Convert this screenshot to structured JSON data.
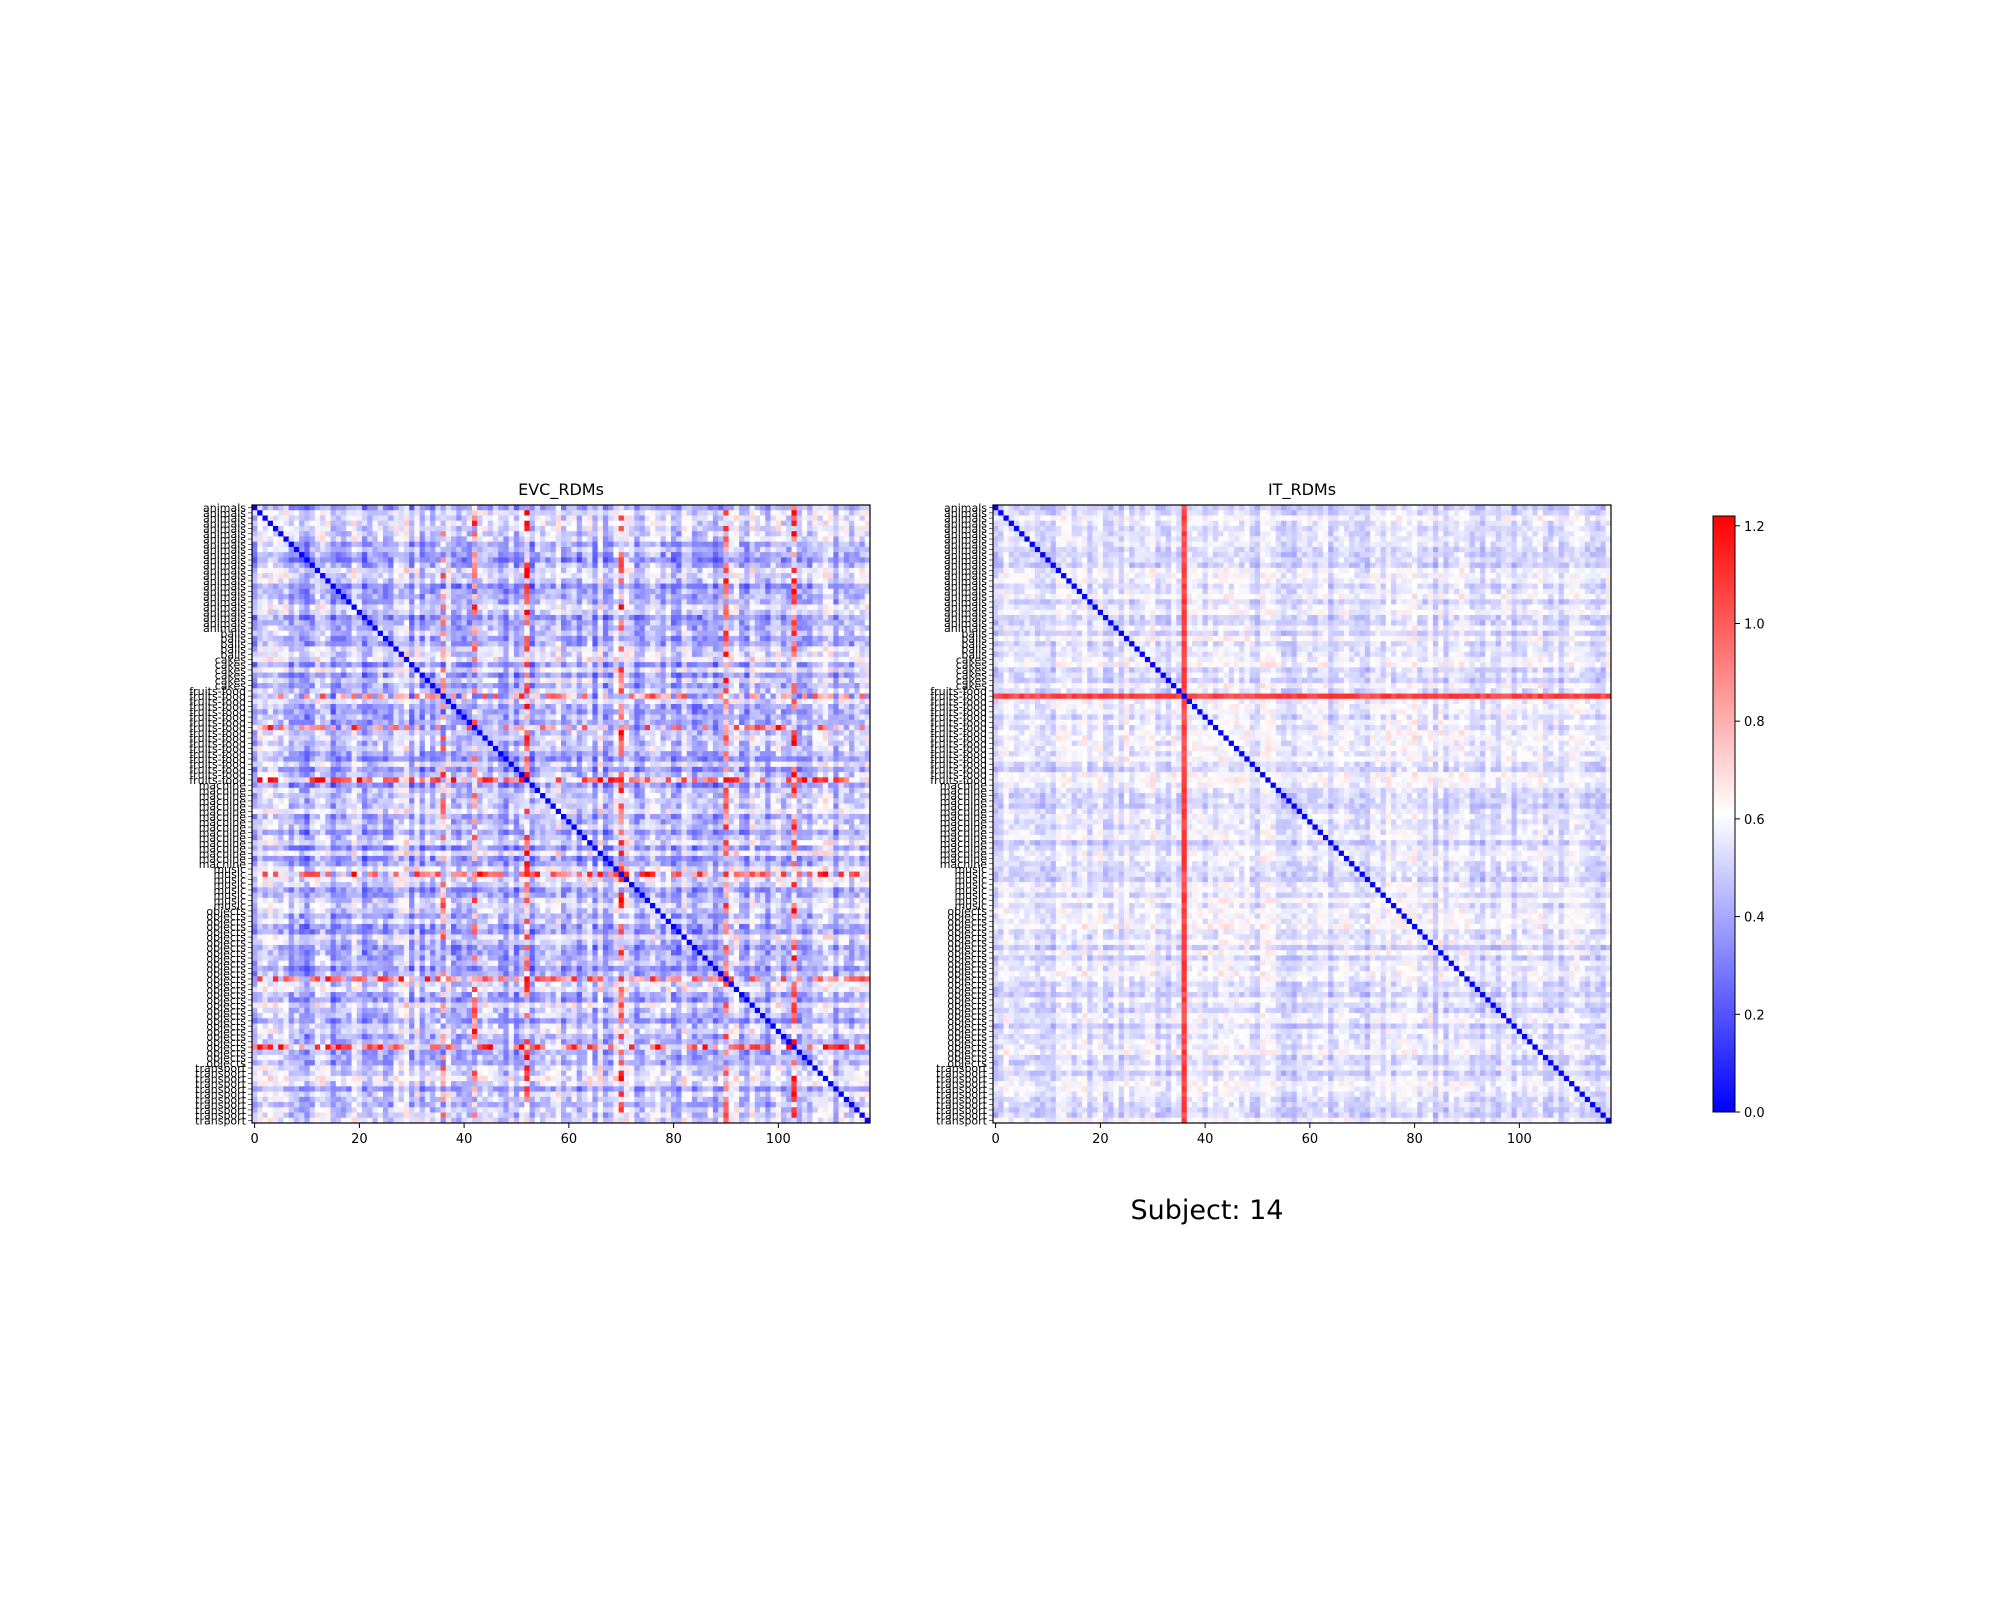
{
  "figure": {
    "suptitle": "Subject: 14"
  },
  "chart_data": [
    {
      "type": "heatmap",
      "title": "EVC_RDMs",
      "n_conditions": 118,
      "diagonal_value": 0.0,
      "value_range": [
        0.0,
        1.22
      ],
      "overall_level": 0.25,
      "x_ticks": [
        0,
        20,
        40,
        60,
        80,
        100
      ],
      "y_category_groups": [
        {
          "label": "animals",
          "count": 24
        },
        {
          "label": "balls",
          "count": 5
        },
        {
          "label": "cakes",
          "count": 6
        },
        {
          "label": "fruits-food",
          "count": 18
        },
        {
          "label": "machine",
          "count": 16
        },
        {
          "label": "music",
          "count": 8
        },
        {
          "label": "objects",
          "count": 30
        },
        {
          "label": "transport",
          "count": 11
        }
      ],
      "highlight_rows": [
        36,
        42,
        52,
        70,
        90,
        103
      ],
      "highlight_cols": [
        36,
        42,
        52,
        70,
        90,
        103
      ],
      "colormap": "bwr"
    },
    {
      "type": "heatmap",
      "title": "IT_RDMs",
      "n_conditions": 118,
      "diagonal_value": 0.0,
      "value_range": [
        0.0,
        1.22
      ],
      "overall_level": 0.42,
      "x_ticks": [
        0,
        20,
        40,
        60,
        80,
        100
      ],
      "y_category_groups": [
        {
          "label": "animals",
          "count": 24
        },
        {
          "label": "balls",
          "count": 5
        },
        {
          "label": "cakes",
          "count": 6
        },
        {
          "label": "fruits-food",
          "count": 18
        },
        {
          "label": "machine",
          "count": 16
        },
        {
          "label": "music",
          "count": 8
        },
        {
          "label": "objects",
          "count": 30
        },
        {
          "label": "transport",
          "count": 11
        }
      ],
      "highlight_rows": [
        36
      ],
      "highlight_cols": [
        36
      ],
      "highlight_value": 1.05,
      "colormap": "bwr"
    }
  ],
  "colorbar": {
    "ticks": [
      "0.0",
      "0.2",
      "0.4",
      "0.6",
      "0.8",
      "1.0",
      "1.2"
    ],
    "tick_values": [
      0.0,
      0.2,
      0.4,
      0.6,
      0.8,
      1.0,
      1.2
    ],
    "range": [
      0.0,
      1.22
    ],
    "colormap": "bwr"
  }
}
